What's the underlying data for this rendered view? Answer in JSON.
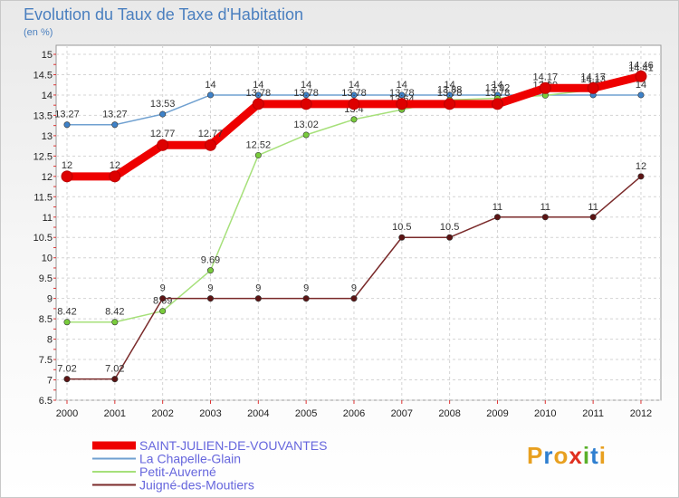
{
  "chart_data": {
    "type": "line",
    "title": "Evolution du Taux de Taxe d'Habitation",
    "subtitle": "(en %)",
    "xlabel": "",
    "ylabel": "",
    "ylim": [
      6.5,
      15
    ],
    "yticks": [
      "6.5",
      "7",
      "7.5",
      "8",
      "8.5",
      "9",
      "9.5",
      "10",
      "10.5",
      "11",
      "11.5",
      "12",
      "12.5",
      "13",
      "13.5",
      "14",
      "14.5",
      "15"
    ],
    "categories": [
      "2000",
      "2001",
      "2002",
      "2003",
      "2004",
      "2005",
      "2006",
      "2007",
      "2008",
      "2009",
      "2010",
      "2011",
      "2012"
    ],
    "series": [
      {
        "name": "La Chapelle-Glain",
        "color": "#6fa0d0",
        "marker": "#3e82c9",
        "values": [
          13.27,
          13.27,
          13.53,
          14,
          14,
          14,
          14,
          14,
          14,
          14,
          14,
          14,
          14
        ],
        "labels": [
          "13.27",
          "13.27",
          "13.53",
          "14",
          "14",
          "14",
          "14",
          "14",
          "14",
          "14",
          "14",
          "14",
          "14"
        ]
      },
      {
        "name": "Petit-Auverné",
        "color": "#a6e07a",
        "marker": "#79cc3c",
        "values": [
          8.42,
          8.42,
          8.69,
          9.69,
          12.52,
          13.02,
          13.4,
          13.64,
          13.88,
          13.92,
          13.99,
          14.13,
          14.41
        ],
        "labels": [
          "8.42",
          "8.42",
          "8.69",
          "9.69",
          "12.52",
          "13.02",
          "13.4",
          "13.64",
          "13.88",
          "13.92",
          "13.99",
          "14.13",
          "14.41"
        ]
      },
      {
        "name": "Juigné-des-Moutiers",
        "color": "#7a2a2a",
        "marker": "#5c1414",
        "values": [
          7.02,
          7.02,
          9,
          9,
          9,
          9,
          9,
          10.5,
          10.5,
          11,
          11,
          11,
          12
        ],
        "labels": [
          "7.02",
          "7.02",
          "9",
          "9",
          "9",
          "9",
          "9",
          "10.5",
          "10.5",
          "11",
          "11",
          "11",
          "12"
        ]
      },
      {
        "name": "SAINT-JULIEN-DE-VOUVANTES",
        "color": "#ee0000",
        "marker": "#dd0000",
        "values": [
          12,
          12,
          12.77,
          12.77,
          13.78,
          13.78,
          13.78,
          13.78,
          13.78,
          13.78,
          14.17,
          14.17,
          14.46
        ],
        "labels": [
          "12",
          "12",
          "12.77",
          "12.77",
          "13.78",
          "13.78",
          "13.78",
          "13.78",
          "13.78",
          "13.78",
          "14.17",
          "14.17",
          "14.46"
        ]
      }
    ]
  },
  "legend": [
    {
      "name": "SAINT-JULIEN-DE-VOUVANTES",
      "color": "#ee0000"
    },
    {
      "name": "La Chapelle-Glain",
      "color": "#6fa0d0"
    },
    {
      "name": "Petit-Auverné",
      "color": "#a6e07a"
    },
    {
      "name": "Juigné-des-Moutiers",
      "color": "#7a2a2a"
    }
  ],
  "brand": {
    "letters": [
      "P",
      "r",
      "o",
      "x",
      "i",
      "t",
      "i"
    ],
    "colors": [
      "#e8a020",
      "#2f7fd0",
      "#e8a020",
      "#e03020",
      "#5ab02a",
      "#2f7fd0",
      "#e8a020"
    ]
  }
}
